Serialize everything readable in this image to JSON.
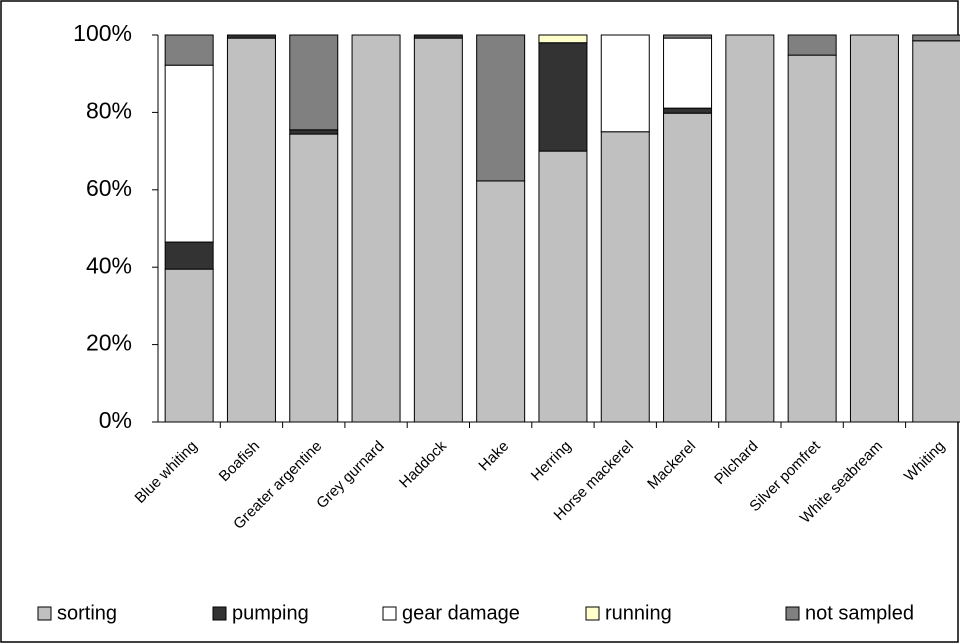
{
  "chart_data": {
    "type": "stacked_bar",
    "categories": [
      "Blue whiting",
      "Boafish",
      "Greater argentine",
      "Grey gurnard",
      "Haddock",
      "Hake",
      "Herring",
      "Horse mackerel",
      "Mackerel",
      "Pilchard",
      "Silver pomfret",
      "White seabream",
      "Whiting"
    ],
    "series": [
      {
        "name": "sorting",
        "color": "#c0c0c0",
        "values": [
          39.5,
          99.2,
          74.4,
          100,
          99.2,
          62.3,
          70,
          75,
          79.8,
          100,
          94.8,
          100,
          98.5
        ]
      },
      {
        "name": "pumping",
        "color": "#333333",
        "values": [
          7,
          0.8,
          1.1,
          0,
          0.8,
          0,
          28,
          0,
          1.3,
          0,
          0,
          0,
          0
        ]
      },
      {
        "name": "gear damage",
        "color": "#ffffff",
        "values": [
          45.7,
          0,
          0,
          0,
          0,
          0,
          0,
          25,
          18.1,
          0,
          0,
          0,
          0
        ]
      },
      {
        "name": "running",
        "color": "#ffffcc",
        "values": [
          0,
          0,
          0,
          0,
          0,
          0,
          2,
          0,
          0,
          0,
          0,
          0,
          0
        ]
      },
      {
        "name": "not sampled",
        "color": "#808080",
        "values": [
          7.8,
          0,
          24.5,
          0,
          0,
          37.7,
          0,
          0,
          0.8,
          0,
          5.2,
          0,
          1.5
        ]
      }
    ],
    "ylim": [
      0,
      100
    ],
    "yticks": [
      {
        "value": 0,
        "label": "0%"
      },
      {
        "value": 20,
        "label": "20%"
      },
      {
        "value": 40,
        "label": "40%"
      },
      {
        "value": 60,
        "label": "60%"
      },
      {
        "value": 80,
        "label": "80%"
      },
      {
        "value": 100,
        "label": "100%"
      }
    ],
    "legend": "bottom"
  }
}
